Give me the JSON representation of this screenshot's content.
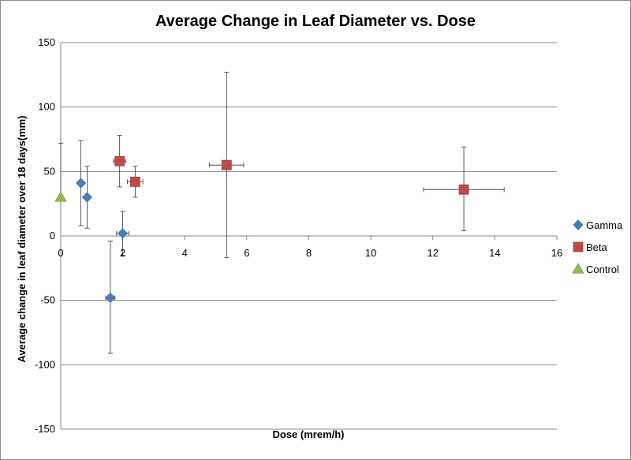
{
  "chart_data": {
    "type": "scatter",
    "title": "Average Change in Leaf Diameter vs. Dose",
    "xlabel": "Dose (mrem/h)",
    "ylabel": "Average change in leaf diameter over 18 days(mm)",
    "xlim": [
      0,
      16
    ],
    "ylim": [
      -150,
      150
    ],
    "x_ticks": [
      "0",
      "2",
      "4",
      "6",
      "8",
      "10",
      "12",
      "14",
      "16"
    ],
    "y_ticks": [
      "150",
      "100",
      "50",
      "0",
      "-50",
      "-100",
      "-150"
    ],
    "grid": "horizontal",
    "legend_position": "right",
    "series": [
      {
        "name": "Gamma",
        "marker": "diamond",
        "color": "#4a7ebb",
        "points": [
          {
            "x": 0.65,
            "y": 41,
            "y_err_low": 33,
            "y_err_high": 33,
            "x_err": 0
          },
          {
            "x": 0.85,
            "y": 30,
            "y_err_low": 24,
            "y_err_high": 24,
            "x_err": 0
          },
          {
            "x": 2.0,
            "y": 2,
            "y_err_low": 17,
            "y_err_high": 17,
            "x_err": 0.2
          },
          {
            "x": 1.6,
            "y": -48,
            "y_err_low": 43,
            "y_err_high": 44,
            "x_err": 0.15
          }
        ]
      },
      {
        "name": "Beta",
        "marker": "square",
        "color": "#be4b48",
        "points": [
          {
            "x": 1.9,
            "y": 58,
            "y_err_low": 20,
            "y_err_high": 20,
            "x_err": 0.2
          },
          {
            "x": 2.4,
            "y": 42,
            "y_err_low": 12,
            "y_err_high": 12,
            "x_err": 0.25
          },
          {
            "x": 5.35,
            "y": 55,
            "y_err_low": 72,
            "y_err_high": 72,
            "x_err": 0.55
          },
          {
            "x": 13.0,
            "y": 36,
            "y_err_low": 32,
            "y_err_high": 33,
            "x_err": 1.3
          }
        ]
      },
      {
        "name": "Control",
        "marker": "triangle",
        "color": "#98b954",
        "points": [
          {
            "x": 0,
            "y": 30,
            "y_err_low": 0,
            "y_err_high": 42,
            "x_err": 0
          }
        ]
      }
    ]
  }
}
